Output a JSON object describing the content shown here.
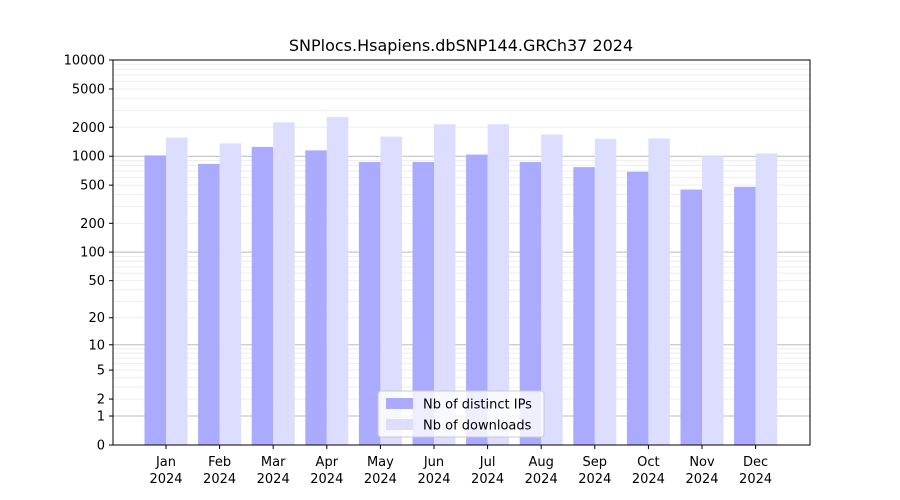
{
  "chart_data": {
    "type": "bar",
    "title": "SNPlocs.Hsapiens.dbSNP144.GRCh37 2024",
    "xlabel": "",
    "ylabel": "",
    "yscale": "log",
    "ylim": [
      0,
      10000
    ],
    "yticks": [
      "0",
      "1",
      "2",
      "5",
      "10",
      "20",
      "50",
      "100",
      "200",
      "500",
      "1000",
      "2000",
      "5000",
      "10000"
    ],
    "categories": [
      [
        "Jan",
        "2024"
      ],
      [
        "Feb",
        "2024"
      ],
      [
        "Mar",
        "2024"
      ],
      [
        "Apr",
        "2024"
      ],
      [
        "May",
        "2024"
      ],
      [
        "Jun",
        "2024"
      ],
      [
        "Jul",
        "2024"
      ],
      [
        "Aug",
        "2024"
      ],
      [
        "Sep",
        "2024"
      ],
      [
        "Oct",
        "2024"
      ],
      [
        "Nov",
        "2024"
      ],
      [
        "Dec",
        "2024"
      ]
    ],
    "series": [
      {
        "name": "Nb of distinct IPs",
        "color": "#aaaaff",
        "values": [
          1020,
          830,
          1250,
          1150,
          870,
          870,
          1040,
          870,
          770,
          690,
          450,
          480
        ]
      },
      {
        "name": "Nb of downloads",
        "color": "#ddddff",
        "values": [
          1560,
          1360,
          2250,
          2550,
          1600,
          2150,
          2150,
          1680,
          1520,
          1530,
          1000,
          1070
        ]
      }
    ],
    "grid": true,
    "legend_position": "bottom-center"
  }
}
